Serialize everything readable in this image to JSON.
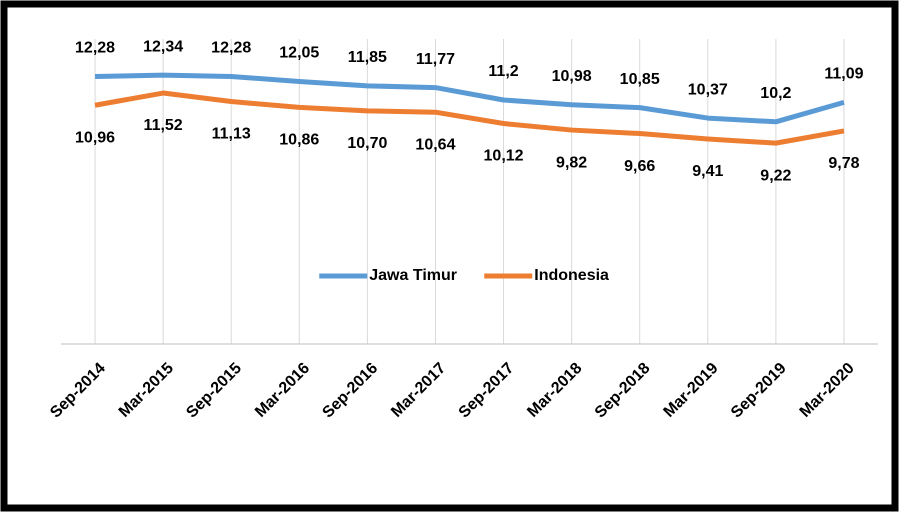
{
  "chart_data": {
    "type": "line",
    "categories": [
      "Sep-2014",
      "Mar-2015",
      "Sep-2015",
      "Mar-2016",
      "Sep-2016",
      "Mar-2017",
      "Sep-2017",
      "Mar-2018",
      "Sep-2018",
      "Mar-2019",
      "Sep-2019",
      "Mar-2020"
    ],
    "series": [
      {
        "name": "Jawa Timur",
        "color": "#5b9bd5",
        "values": [
          12.28,
          12.34,
          12.28,
          12.05,
          11.85,
          11.77,
          11.2,
          10.98,
          10.85,
          10.37,
          10.2,
          11.09
        ],
        "value_labels": [
          "12,28",
          "12,34",
          "12,28",
          "12,05",
          "11,85",
          "11,77",
          "11,2",
          "10,98",
          "10,85",
          "10,37",
          "10,2",
          "11,09"
        ]
      },
      {
        "name": "Indonesia",
        "color": "#ed7d31",
        "values": [
          10.96,
          11.52,
          11.13,
          10.86,
          10.7,
          10.64,
          10.12,
          9.82,
          9.66,
          9.41,
          9.22,
          9.78
        ],
        "value_labels": [
          "10,96",
          "11,52",
          "11,13",
          "10,86",
          "10,70",
          "10,64",
          "10,12",
          "9,82",
          "9,66",
          "9,41",
          "9,22",
          "9,78"
        ]
      }
    ],
    "ylim": [
      0,
      14
    ],
    "grid": true,
    "legend": "center"
  }
}
